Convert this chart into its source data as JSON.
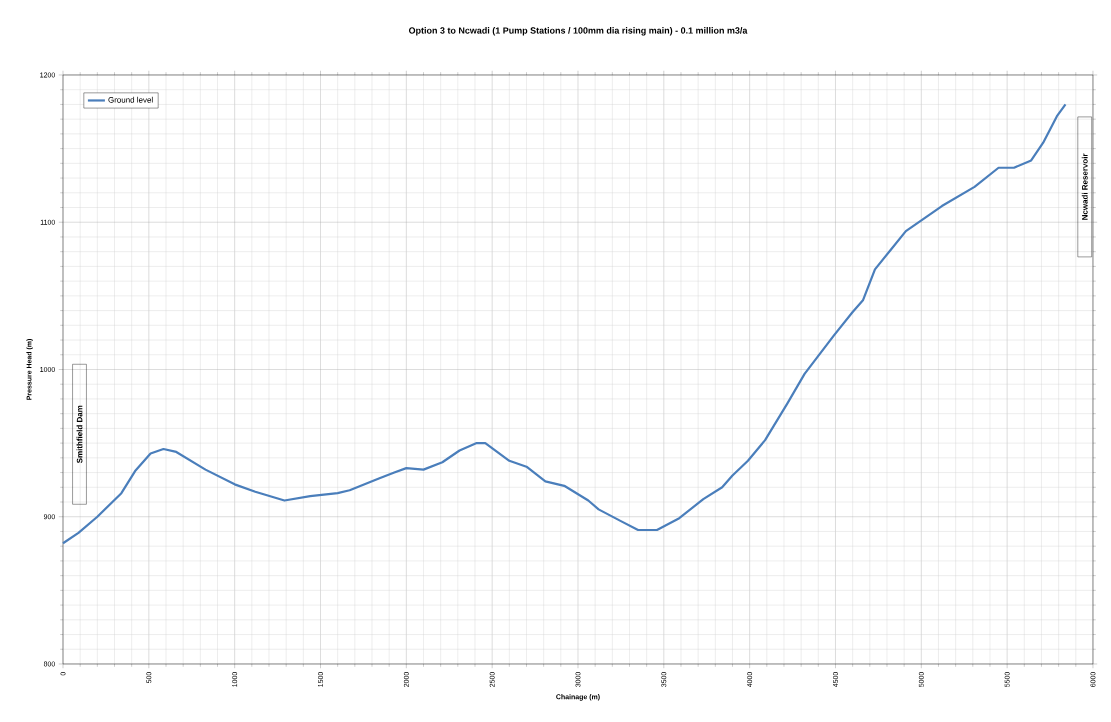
{
  "chart_data": {
    "type": "line",
    "title": "Option 3 to Ncwadi (1 Pump Stations / 100mm dia rising main) - 0.1 million m3/a",
    "xlabel": "Chainage (m)",
    "ylabel": "Pressure Head (m)",
    "annotations": [
      "Smithfield Dam",
      "Ncwadi Reservoir"
    ],
    "xlim": [
      0,
      6000
    ],
    "ylim": [
      800,
      1200
    ],
    "xticks": [
      0,
      500,
      1000,
      1500,
      2000,
      2500,
      3000,
      3500,
      4000,
      4500,
      5000,
      5500,
      6000
    ],
    "yticks": [
      800,
      900,
      1000,
      1100,
      1200
    ],
    "grid": true,
    "legend": "top left",
    "marker": "none",
    "line_style": "solid",
    "series": [
      {
        "name": "Ground level",
        "color": "#4a7ebb",
        "x": [
          0,
          90,
          200,
          340,
          420,
          510,
          585,
          660,
          830,
          1000,
          1120,
          1290,
          1440,
          1600,
          1670,
          1840,
          1930,
          2000,
          2100,
          2210,
          2310,
          2410,
          2460,
          2600,
          2700,
          2810,
          2920,
          3060,
          3120,
          3250,
          3350,
          3460,
          3590,
          3730,
          3840,
          3900,
          3990,
          4090,
          4220,
          4320,
          4490,
          4600,
          4660,
          4730,
          4820,
          4910,
          5120,
          5310,
          5450,
          5540,
          5640,
          5710,
          5790,
          5840
        ],
        "values": [
          882,
          889,
          900,
          916,
          931,
          943,
          946,
          944,
          932,
          922,
          917,
          911,
          914,
          916,
          918,
          926,
          930,
          933,
          932,
          937,
          945,
          950,
          950,
          938,
          934,
          924,
          921,
          911,
          905,
          897,
          891,
          891,
          899,
          912,
          920,
          928,
          938,
          952,
          977,
          997,
          1023,
          1039,
          1047,
          1068,
          1081,
          1094,
          1111,
          1124,
          1137,
          1137,
          1142,
          1154,
          1172,
          1180
        ]
      }
    ]
  }
}
